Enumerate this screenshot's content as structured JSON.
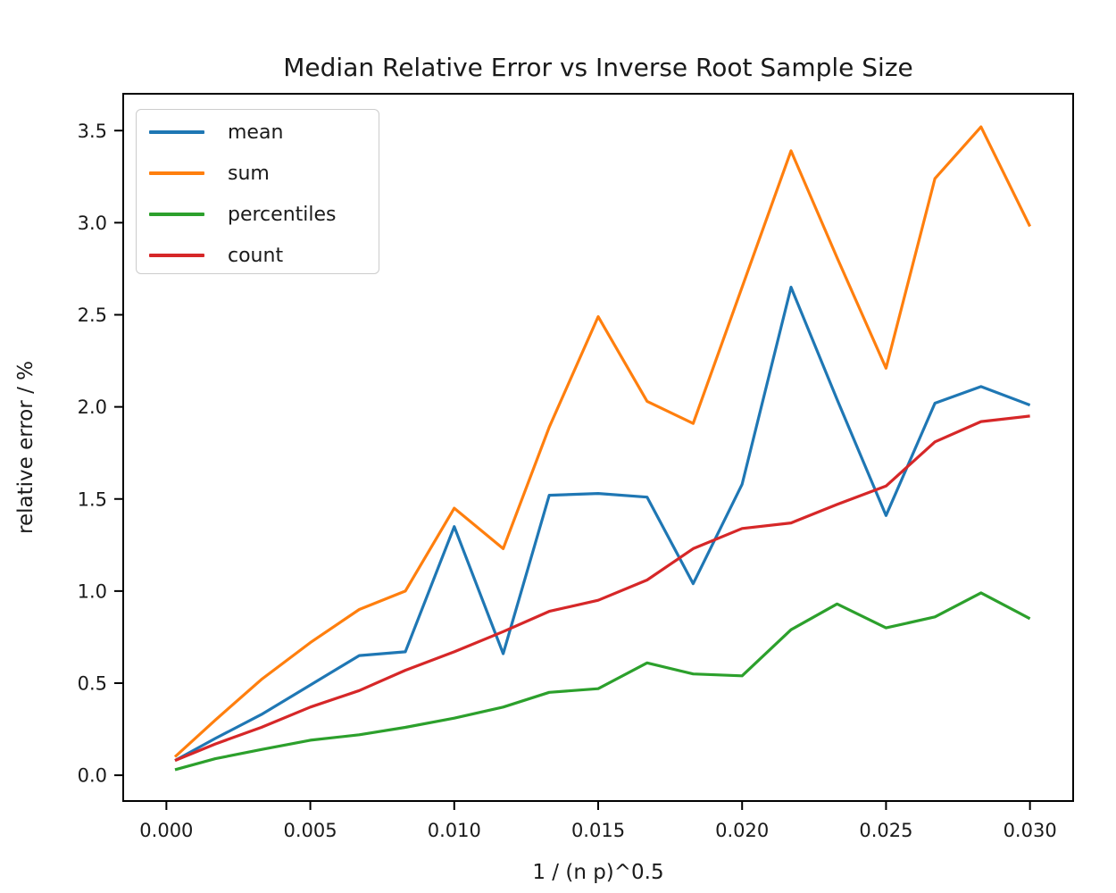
{
  "chart_data": {
    "type": "line",
    "title": "Median Relative Error vs Inverse Root Sample Size",
    "xlabel": "1 / (n p)^0.5",
    "ylabel": "relative error / %",
    "grid": false,
    "legend_position": "upper-left",
    "xlim": [
      -0.0015,
      0.0315
    ],
    "ylim": [
      -0.14,
      3.7
    ],
    "x_ticks": {
      "values": [
        0.0,
        0.005,
        0.01,
        0.015,
        0.02,
        0.025,
        0.03
      ],
      "labels": [
        "0.000",
        "0.005",
        "0.010",
        "0.015",
        "0.020",
        "0.025",
        "0.030"
      ]
    },
    "y_ticks": {
      "values": [
        0.0,
        0.5,
        1.0,
        1.5,
        2.0,
        2.5,
        3.0,
        3.5
      ],
      "labels": [
        "0.0",
        "0.5",
        "1.0",
        "1.5",
        "2.0",
        "2.5",
        "3.0",
        "3.5"
      ]
    },
    "x": [
      0.0003,
      0.0017,
      0.0033,
      0.005,
      0.0067,
      0.0083,
      0.01,
      0.0117,
      0.0133,
      0.015,
      0.0167,
      0.0183,
      0.02,
      0.0217,
      0.0233,
      0.025,
      0.0267,
      0.0283,
      0.03
    ],
    "series": [
      {
        "name": "mean",
        "color": "#1f77b4",
        "values": [
          0.08,
          0.2,
          0.33,
          0.49,
          0.65,
          0.67,
          1.35,
          0.66,
          1.52,
          1.53,
          1.51,
          1.04,
          1.58,
          2.65,
          2.04,
          1.41,
          2.02,
          2.11,
          2.01
        ]
      },
      {
        "name": "sum",
        "color": "#ff7f0e",
        "values": [
          0.1,
          0.3,
          0.52,
          0.72,
          0.9,
          1.0,
          1.45,
          1.23,
          1.89,
          2.49,
          2.03,
          1.91,
          2.65,
          3.39,
          2.81,
          2.21,
          3.24,
          3.52,
          2.98
        ]
      },
      {
        "name": "percentiles",
        "color": "#2ca02c",
        "values": [
          0.03,
          0.09,
          0.14,
          0.19,
          0.22,
          0.26,
          0.31,
          0.37,
          0.45,
          0.47,
          0.61,
          0.55,
          0.54,
          0.79,
          0.93,
          0.8,
          0.86,
          0.99,
          0.85
        ]
      },
      {
        "name": "count",
        "color": "#d62728",
        "values": [
          0.08,
          0.17,
          0.26,
          0.37,
          0.46,
          0.57,
          0.67,
          0.78,
          0.89,
          0.95,
          1.06,
          1.23,
          1.34,
          1.37,
          1.47,
          1.57,
          1.81,
          1.92,
          1.95
        ]
      }
    ]
  }
}
